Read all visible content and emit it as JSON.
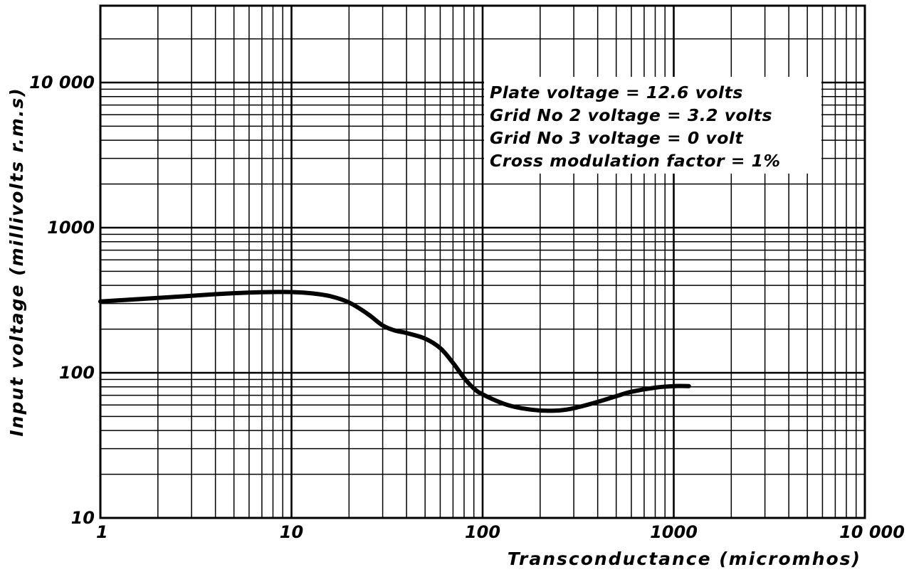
{
  "colors": {
    "background": "#ffffff",
    "ink": "#000000"
  },
  "chart_data": {
    "type": "line",
    "title": "",
    "xlabel": "Transconductance (micromhos)",
    "ylabel": "Input voltage (millivolts r.m.s)",
    "xscale": "log",
    "yscale": "log",
    "xlim": [
      1,
      10000
    ],
    "ylim": [
      10,
      30000
    ],
    "grid": true,
    "x_tick_labels": [
      {
        "value": 1,
        "label": "1"
      },
      {
        "value": 10,
        "label": "10"
      },
      {
        "value": 100,
        "label": "100"
      },
      {
        "value": 1000,
        "label": "1000"
      },
      {
        "value": 10000,
        "label": "10 000"
      }
    ],
    "y_tick_labels": [
      {
        "value": 10,
        "label": "10"
      },
      {
        "value": 100,
        "label": "100"
      },
      {
        "value": 1000,
        "label": "1000"
      },
      {
        "value": 10000,
        "label": "10 000"
      }
    ],
    "annotations": [
      "Plate  voltage = 12.6 volts",
      "Grid  No 2  voltage = 3.2 volts",
      "Grid  No 3  voltage =   0 volt",
      "Cross  modulation  factor = 1%"
    ],
    "series": [
      {
        "x": [
          1,
          2,
          4,
          6,
          8,
          10,
          13,
          16,
          20,
          25,
          30,
          35,
          40,
          50,
          60,
          70,
          80,
          90,
          100,
          130,
          160,
          200,
          250,
          300,
          400,
          500,
          600,
          800,
          1000,
          1200
        ],
        "y": [
          310,
          328,
          348,
          357,
          360,
          360,
          352,
          337,
          305,
          255,
          212,
          195,
          188,
          172,
          148,
          117,
          92,
          78,
          71,
          61,
          57,
          55,
          55,
          57,
          63,
          69,
          74,
          79,
          81,
          81
        ]
      }
    ]
  }
}
